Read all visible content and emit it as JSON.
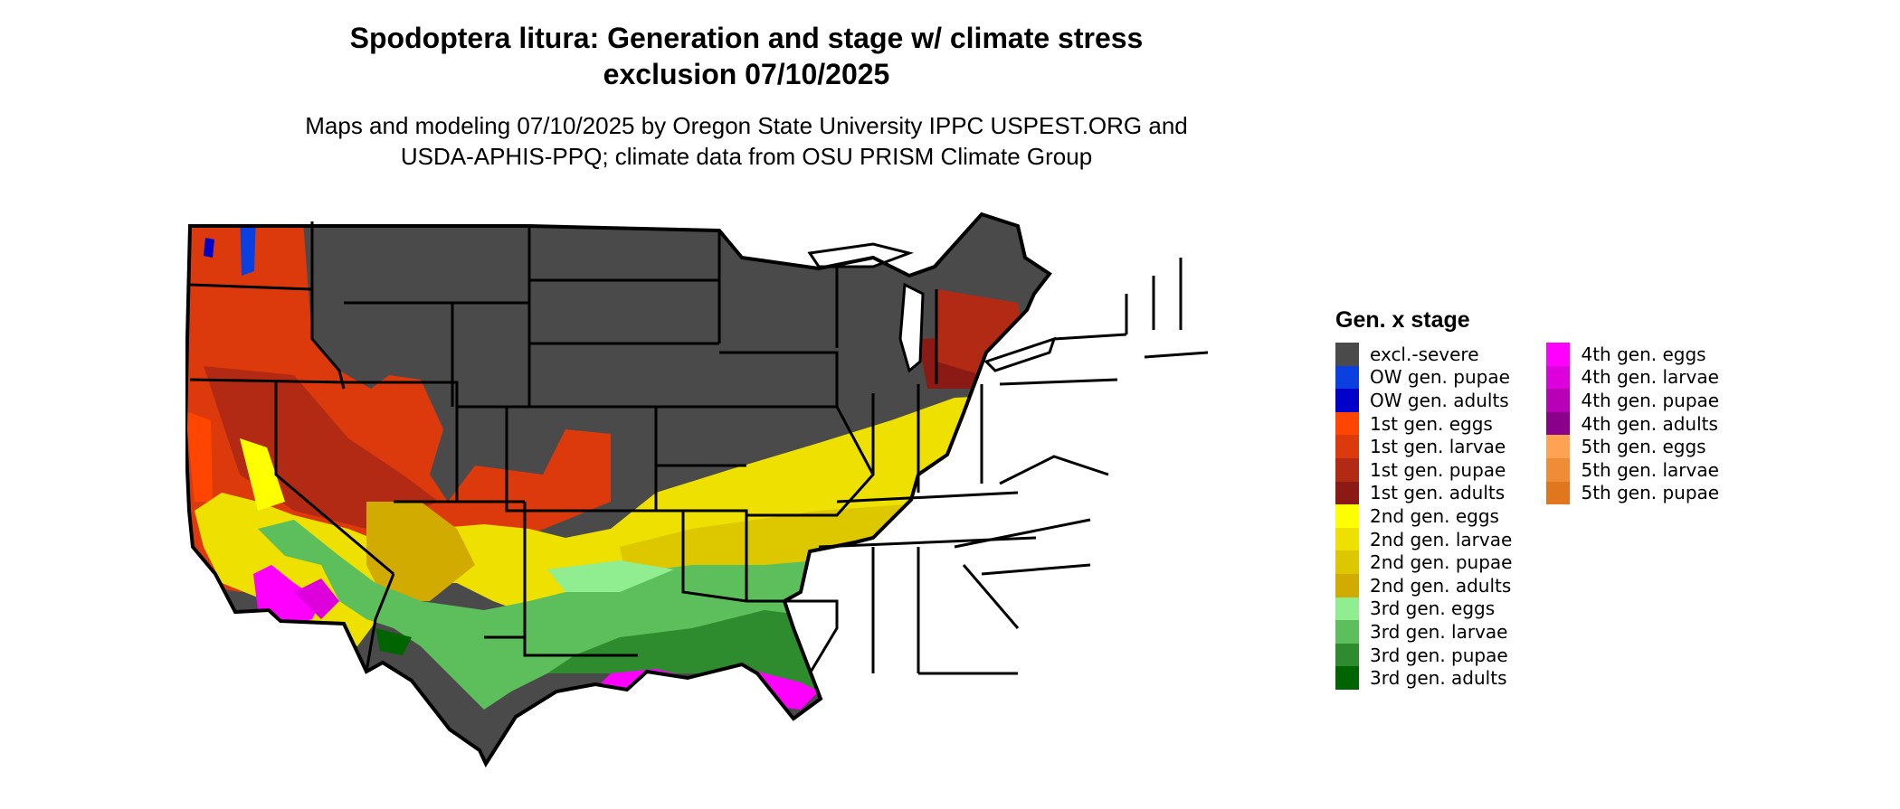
{
  "title_lines": [
    "Spodoptera litura: Generation and stage w/ climate stress",
    "exclusion 07/10/2025"
  ],
  "subtitle_lines": [
    "Maps and modeling 07/10/2025 by Oregon State University IPPC USPEST.ORG and",
    "USDA-APHIS-PPQ; climate data from OSU PRISM Climate Group"
  ],
  "legend": {
    "title": "Gen. x stage",
    "items": [
      {
        "label": "excl.-severe",
        "color": "#4a4a4a"
      },
      {
        "label": "OW gen. pupae",
        "color": "#0a3fe0"
      },
      {
        "label": "OW gen. adults",
        "color": "#0000c8"
      },
      {
        "label": "1st gen. eggs",
        "color": "#ff4500"
      },
      {
        "label": "1st gen. larvae",
        "color": "#dc3a0c"
      },
      {
        "label": "1st gen. pupae",
        "color": "#b32a14"
      },
      {
        "label": "1st gen. adults",
        "color": "#8b1a14"
      },
      {
        "label": "2nd gen. eggs",
        "color": "#ffff00"
      },
      {
        "label": "2nd gen. larvae",
        "color": "#eee000"
      },
      {
        "label": "2nd gen. pupae",
        "color": "#ddc800"
      },
      {
        "label": "2nd gen. adults",
        "color": "#d2ab00"
      },
      {
        "label": "3rd gen. eggs",
        "color": "#90ee90"
      },
      {
        "label": "3rd gen. larvae",
        "color": "#5cbf5c"
      },
      {
        "label": "3rd gen. pupae",
        "color": "#2e8b2e"
      },
      {
        "label": "3rd gen. adults",
        "color": "#006400"
      },
      {
        "label": "4th gen. eggs",
        "color": "#ff00ff"
      },
      {
        "label": "4th gen. larvae",
        "color": "#dd00dd"
      },
      {
        "label": "4th gen. pupae",
        "color": "#b800b8"
      },
      {
        "label": "4th gen. adults",
        "color": "#8b008b"
      },
      {
        "label": "5th gen. eggs",
        "color": "#ffa352"
      },
      {
        "label": "5th gen. larvae",
        "color": "#f08c36"
      },
      {
        "label": "5th gen. pupae",
        "color": "#e0761e"
      }
    ]
  }
}
